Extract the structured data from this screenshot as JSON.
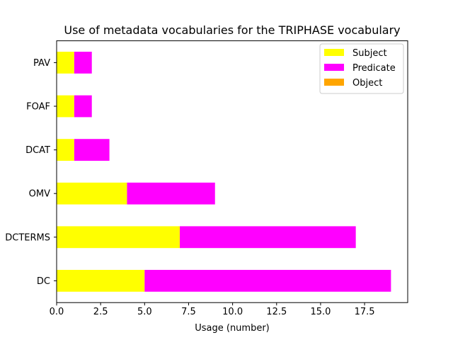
{
  "chart_data": {
    "type": "bar",
    "orientation": "horizontal",
    "stacked": true,
    "title": "Use of metadata vocabularies for the TRIPHASE vocabulary",
    "xlabel": "Usage (number)",
    "ylabel": "",
    "categories": [
      "DC",
      "DCTERMS",
      "OMV",
      "DCAT",
      "FOAF",
      "PAV"
    ],
    "series": [
      {
        "name": "Subject",
        "color": "#ffff00",
        "values": [
          5,
          7,
          4,
          1,
          1,
          1
        ]
      },
      {
        "name": "Predicate",
        "color": "#ff00ff",
        "values": [
          14,
          10,
          5,
          2,
          1,
          1
        ]
      },
      {
        "name": "Object",
        "color": "#ffa500",
        "values": [
          0,
          0,
          0,
          0,
          0,
          0
        ]
      }
    ],
    "xlim": [
      0,
      19.95
    ],
    "xticks": [
      "0.0",
      "2.5",
      "5.0",
      "7.5",
      "10.0",
      "12.5",
      "15.0",
      "17.5"
    ],
    "grid": false,
    "legend_position": "top-right"
  }
}
